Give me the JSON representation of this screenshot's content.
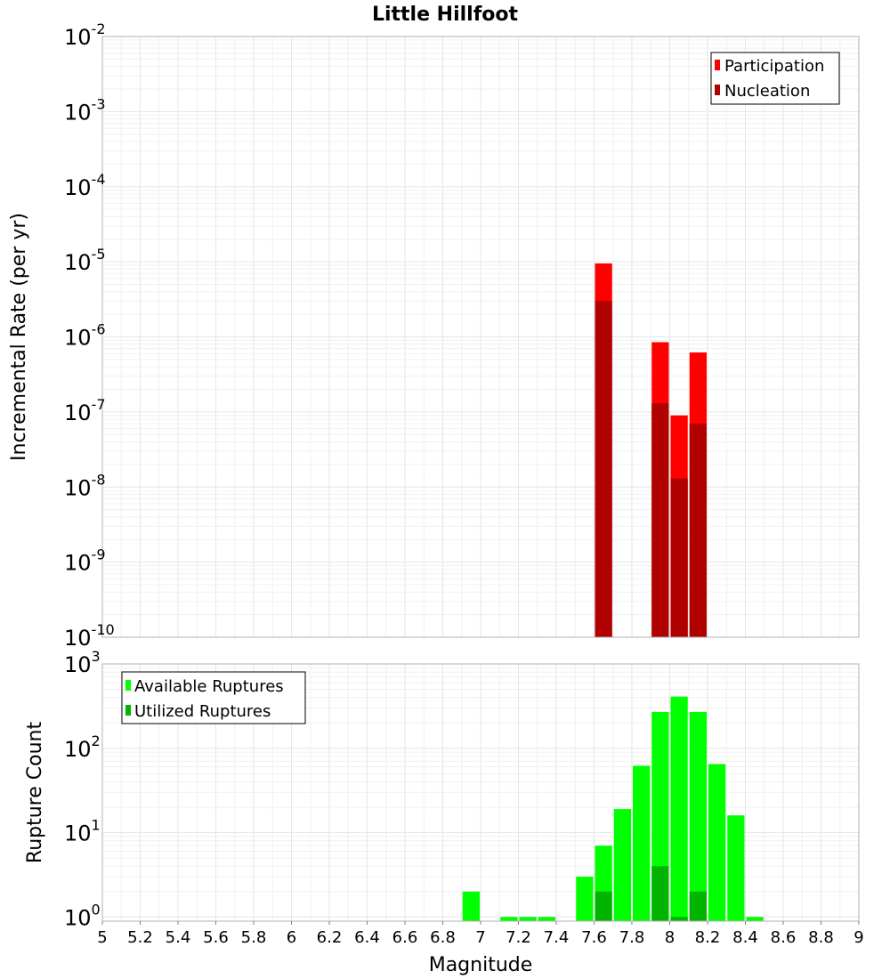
{
  "chart_data": [
    {
      "type": "bar",
      "title": "Little Hillfoot",
      "xlabel": "",
      "ylabel": "Incremental Rate (per yr)",
      "yscale": "log",
      "ylim_exponents": [
        -10,
        -2
      ],
      "xlim": [
        5,
        9
      ],
      "x_bin_width": 0.1,
      "colors": {
        "participation": "#ff0000",
        "nucleation": "#b00000"
      },
      "legend": {
        "position": "top-right",
        "entries": [
          "Participation",
          "Nucleation"
        ]
      },
      "series": [
        {
          "name": "Participation",
          "x": [
            7.65,
            7.95,
            8.05,
            8.15
          ],
          "values": [
            9.5e-06,
            8.5e-07,
            9e-08,
            6.2e-07
          ]
        },
        {
          "name": "Nucleation",
          "x": [
            7.65,
            7.95,
            8.05,
            8.15
          ],
          "values": [
            3e-06,
            1.3e-07,
            1.3e-08,
            7e-08
          ]
        }
      ]
    },
    {
      "type": "bar",
      "title": "",
      "xlabel": "Magnitude",
      "ylabel": "Rupture Count",
      "yscale": "log",
      "ylim_exponents": [
        0,
        3
      ],
      "xlim": [
        5,
        9
      ],
      "x_bin_width": 0.1,
      "x_ticks": [
        "5",
        "5.2",
        "5.4",
        "5.6",
        "5.8",
        "6",
        "6.2",
        "6.4",
        "6.6",
        "6.8",
        "7",
        "7.2",
        "7.4",
        "7.6",
        "7.8",
        "8",
        "8.2",
        "8.4",
        "8.6",
        "8.8",
        "9"
      ],
      "colors": {
        "available": "#00ff00",
        "utilized": "#00b400"
      },
      "legend": {
        "position": "top-left",
        "entries": [
          "Available Ruptures",
          "Utilized Ruptures"
        ]
      },
      "series": [
        {
          "name": "Available Ruptures",
          "x": [
            6.95,
            7.15,
            7.25,
            7.35,
            7.55,
            7.65,
            7.75,
            7.85,
            7.95,
            8.05,
            8.15,
            8.25,
            8.35,
            8.45
          ],
          "values": [
            2,
            1,
            1,
            1,
            3,
            7,
            19,
            62,
            270,
            410,
            270,
            65,
            16,
            1
          ]
        },
        {
          "name": "Utilized Ruptures",
          "x": [
            7.65,
            7.95,
            8.05,
            8.15
          ],
          "values": [
            2,
            4,
            1,
            2
          ]
        }
      ]
    }
  ]
}
